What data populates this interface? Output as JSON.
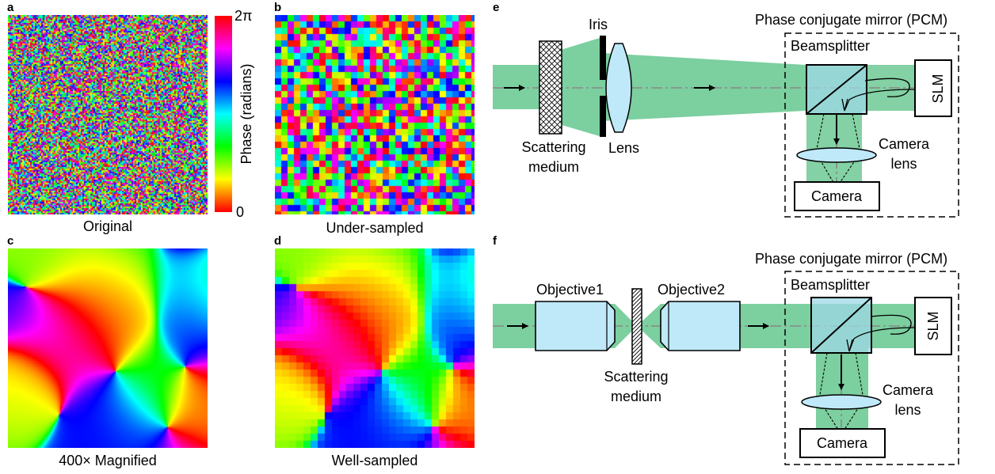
{
  "panels": {
    "a": {
      "letter": "a",
      "caption": "Original"
    },
    "b": {
      "letter": "b",
      "caption": "Under-sampled"
    },
    "c": {
      "letter": "c",
      "caption": "400× Magnified"
    },
    "d": {
      "letter": "d",
      "caption": "Well-sampled"
    },
    "e": {
      "letter": "e"
    },
    "f": {
      "letter": "f"
    }
  },
  "colorbar": {
    "top_label": "2π",
    "bottom_label": "0",
    "axis_label": "Phase (radians)",
    "colormap": "hsv"
  },
  "diagram_e": {
    "pcm_label": "Phase conjugate mirror (PCM)",
    "iris": "Iris",
    "beamsplitter": "Beamsplitter",
    "slm": "SLM",
    "scattering_line1": "Scattering",
    "scattering_line2": "medium",
    "lens": "Lens",
    "camera_lens_line1": "Camera",
    "camera_lens_line2": "lens",
    "camera": "Camera"
  },
  "diagram_f": {
    "pcm_label": "Phase conjugate mirror (PCM)",
    "objective1": "Objective1",
    "objective2": "Objective2",
    "beamsplitter": "Beamsplitter",
    "slm": "SLM",
    "scattering_line1": "Scattering",
    "scattering_line2": "medium",
    "camera_lens_line1": "Camera",
    "camera_lens_line2": "lens",
    "camera": "Camera"
  },
  "colors": {
    "beam": "#7ccf9f",
    "optic_fill": "#bfe9f8",
    "optic_stroke": "#000000"
  }
}
